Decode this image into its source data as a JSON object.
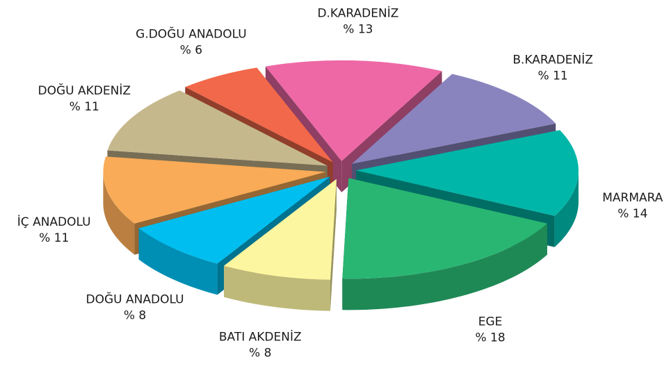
{
  "chart_data": {
    "type": "pie3d",
    "categories": [
      "D.KARADENİZ",
      "B.KARADENİZ",
      "MARMARA",
      "EGE",
      "BATI AKDENİZ",
      "DOĞU ANADOLU",
      "İÇ ANADOLU",
      "DOĞU AKDENİZ",
      "G.DOĞU ANADOLU"
    ],
    "values": [
      13,
      11,
      14,
      18,
      8,
      8,
      11,
      11,
      6
    ],
    "value_labels": [
      "% 13",
      "% 11",
      "% 14",
      "% 18",
      "% 8",
      "% 8",
      "% 11",
      "% 11",
      "% 6"
    ],
    "colors": [
      "#ee68a6",
      "#8a84be",
      "#00b6a9",
      "#29b672",
      "#fdf6a0",
      "#00bff0",
      "#f9ab57",
      "#c6b88d",
      "#f2684a"
    ]
  }
}
